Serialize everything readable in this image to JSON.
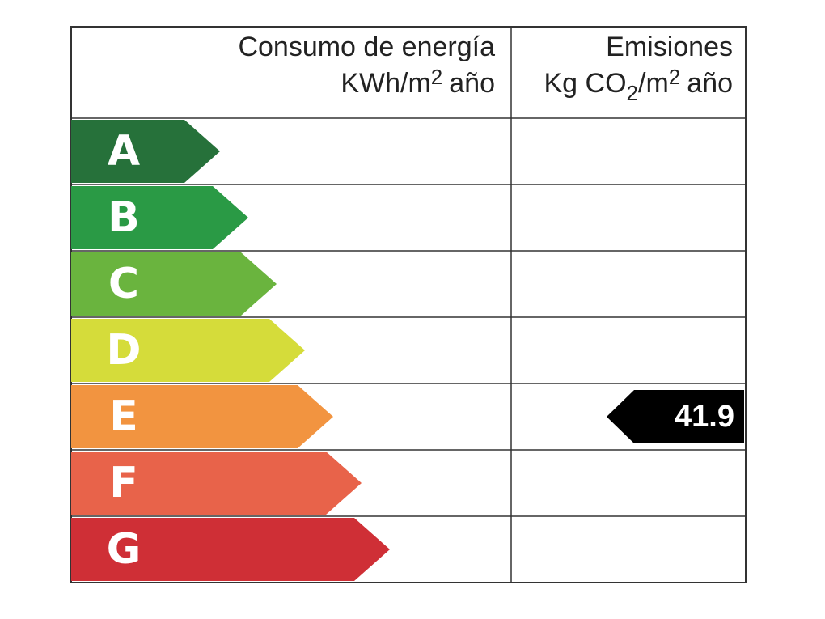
{
  "header": {
    "consumo": {
      "title": "Consumo de energía",
      "unit": {
        "base": "KWh/m",
        "sup": "2",
        "rest": "año"
      }
    },
    "emisiones": {
      "title": "Emisiones",
      "unit": {
        "base": "Kg CO",
        "sub": "2",
        "mid": "/m",
        "sup": "2",
        "rest": "año"
      }
    }
  },
  "ratings": [
    {
      "letter": "A",
      "color": "#26713a"
    },
    {
      "letter": "B",
      "color": "#2a9a45"
    },
    {
      "letter": "C",
      "color": "#6ab43e"
    },
    {
      "letter": "D",
      "color": "#d5dc3a"
    },
    {
      "letter": "E",
      "color": "#f29440"
    },
    {
      "letter": "F",
      "color": "#e8634a"
    },
    {
      "letter": "G",
      "color": "#cf2f36"
    }
  ],
  "emisiones": {
    "value": 41.9
  }
}
